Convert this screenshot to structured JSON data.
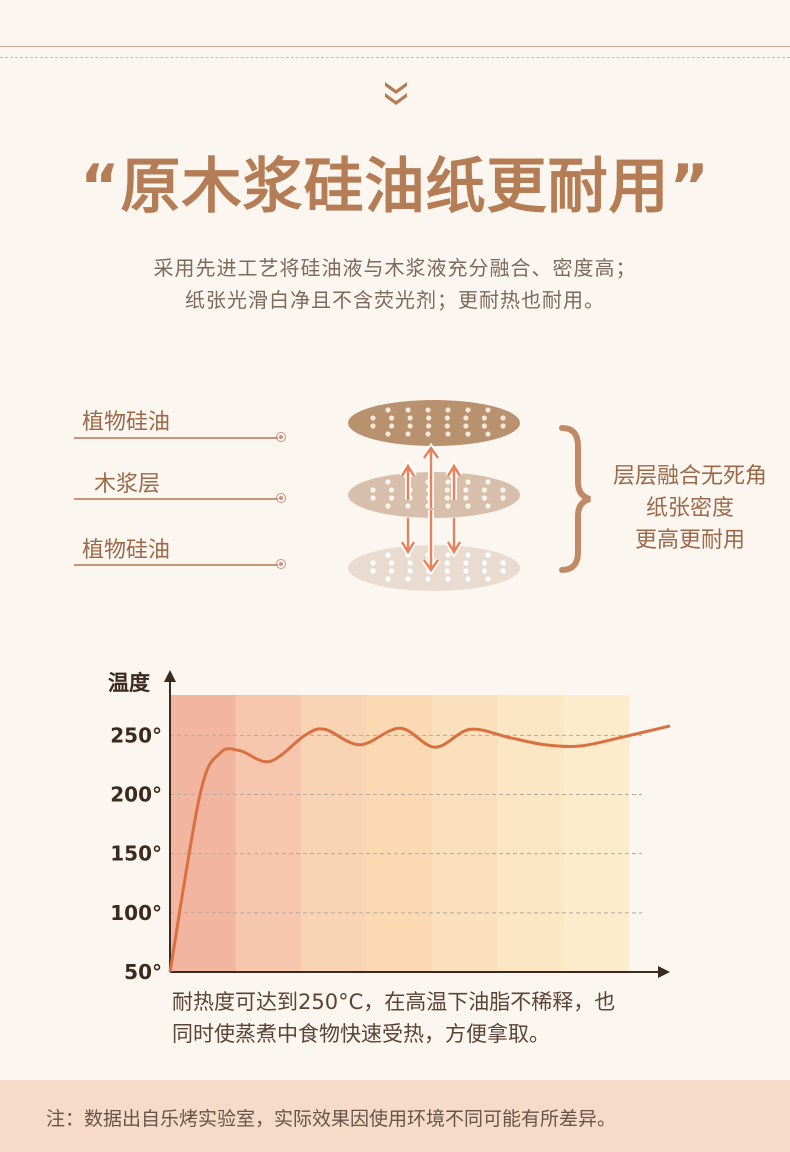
{
  "title": "“原木浆硅油纸更耐用”",
  "subtitle": {
    "line1": "采用先进工艺将硅油液与木浆液充分融合、密度高；",
    "line2": "纸张光滑白净且不含荧光剂；更耐热也耐用。"
  },
  "layers": {
    "labels": [
      "植物硅油",
      "木浆层",
      "植物硅油"
    ],
    "colors": [
      "#b8916f",
      "#d8bfab",
      "#eadbd0"
    ],
    "right_text": [
      "层层融合无死角",
      "纸张密度",
      "更高更耐用"
    ]
  },
  "chart_data": {
    "type": "line",
    "ylabel": "温度",
    "y_ticks": [
      "250°",
      "200°",
      "150°",
      "100°",
      "50°"
    ],
    "y_tick_values": [
      250,
      200,
      150,
      100,
      50
    ],
    "ylim": [
      50,
      290
    ],
    "xlim": [
      0,
      100
    ],
    "grid": true,
    "line_color": "#d9703f",
    "band_colors": [
      "#f2b5a0",
      "#f6c6ae",
      "#f9d4b4",
      "#fad9b3",
      "#fbe0bd",
      "#fce6c4",
      "#fdeccc"
    ],
    "series": [
      {
        "x": [
          0,
          6,
          10,
          14,
          20,
          27,
          31,
          38,
          46,
          53,
          60,
          68,
          75,
          82,
          90,
          100
        ],
        "y": [
          50,
          200,
          235,
          237,
          228,
          250,
          255,
          242,
          256,
          240,
          255,
          248,
          242,
          241,
          248,
          258
        ]
      }
    ]
  },
  "caption": {
    "line1": "耐热度可达到250°C，在高温下油脂不稀释，也",
    "line2": "同时使蒸煮中食物快速受热，方便拿取。"
  },
  "footer_note": "注：数据出自乐烤实验室，实际效果因使用环境不同可能有所差异。"
}
